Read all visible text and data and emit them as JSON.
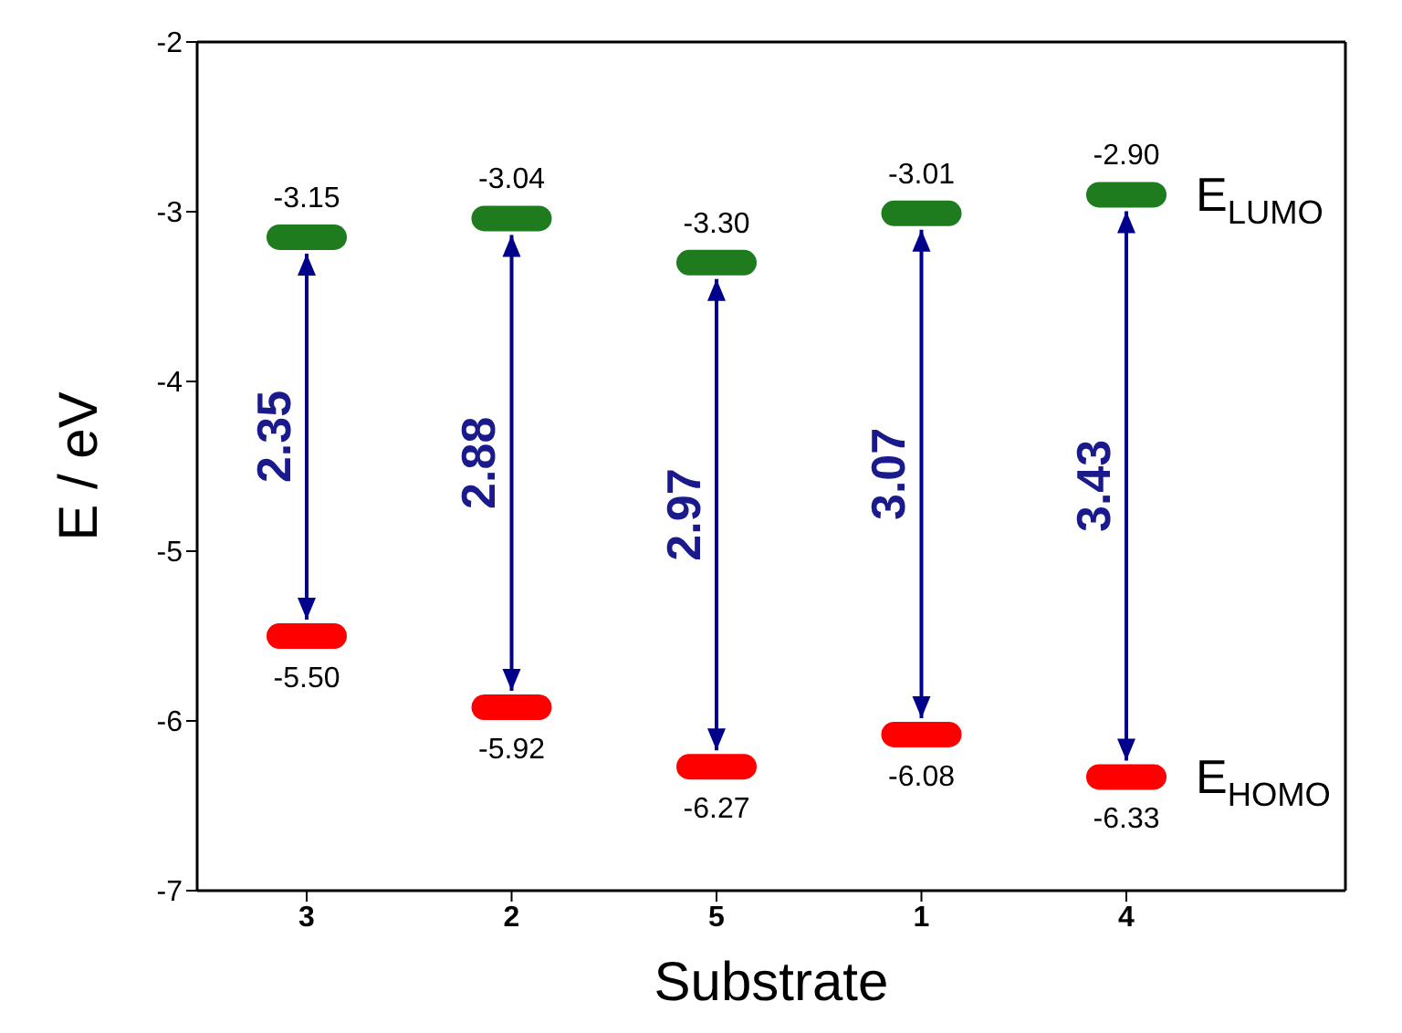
{
  "chart_data": {
    "type": "scatter",
    "xlabel": "Substrate",
    "ylabel": "E / eV",
    "categories": [
      "3",
      "2",
      "5",
      "1",
      "4"
    ],
    "series": [
      {
        "name": "E$_{LUMO}$",
        "color": "#1e7b1e",
        "values": [
          -3.15,
          -3.04,
          -3.3,
          -3.01,
          -2.9
        ],
        "value_labels": [
          "-3.15",
          "-3.04",
          "-3.30",
          "-3.01",
          "-2.90"
        ]
      },
      {
        "name": "E$_{HOMO}$",
        "color": "#ff0000",
        "values": [
          -5.5,
          -5.92,
          -6.27,
          -6.08,
          -6.33
        ],
        "value_labels": [
          "-5.50",
          "-5.92",
          "-6.27",
          "-6.08",
          "-6.33"
        ]
      }
    ],
    "ylim": [
      -7,
      -2
    ],
    "yticks": [
      -7,
      -6,
      -5,
      -4,
      -3,
      -2
    ],
    "grid": false,
    "legend": false,
    "marker": "square",
    "annotations": [
      "2.35",
      "2.88",
      "2.97",
      "3.07",
      "3.43"
    ]
  }
}
